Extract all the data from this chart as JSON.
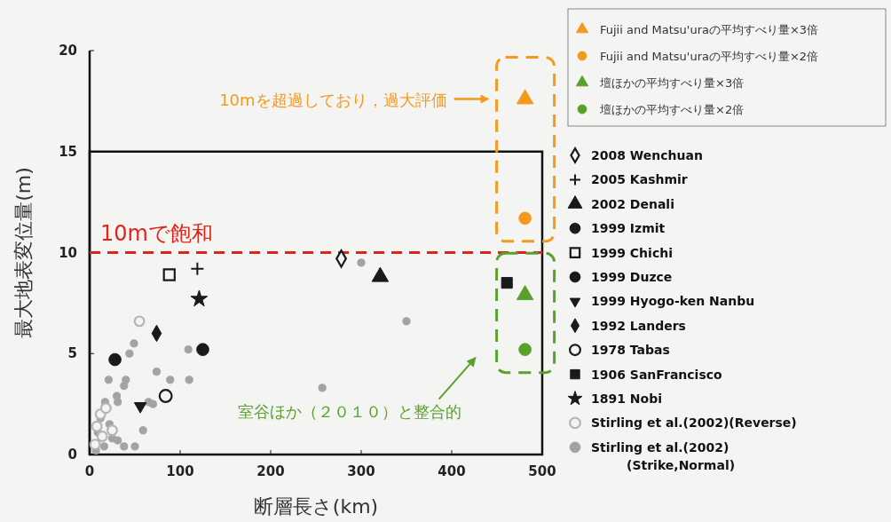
{
  "chart_data": {
    "type": "scatter",
    "xlabel": "断層長さ(km)",
    "ylabel": "最大地表変位量(m)",
    "xlim": [
      0,
      500
    ],
    "xticks": [
      0,
      100,
      200,
      300,
      400,
      500
    ],
    "ylim": [
      0,
      20
    ],
    "yticks": [
      0,
      5,
      10,
      15,
      20
    ],
    "grid": false,
    "legend": "right",
    "ref_lines": [
      {
        "axis": "y",
        "value": 10,
        "label": "10mで飽和",
        "color": "#e0241b",
        "line_style": "dashed"
      }
    ],
    "annotations": [
      "10mを超過しており，過大評価",
      "室谷ほか（２０１０）と整合的"
    ],
    "series": [
      {
        "name": "Fujii and Matsu'uraの平均すべり量×3倍",
        "color": "#f39a1e",
        "marker": "triangle",
        "x": [
          481
        ],
        "values": [
          17.6
        ]
      },
      {
        "name": "Fujii and Matsu'uraの平均すべり量×2倍",
        "color": "#f39a1e",
        "marker": "circle",
        "x": [
          481
        ],
        "values": [
          11.7
        ]
      },
      {
        "name": "壇ほかの平均すべり量×3倍",
        "color": "#5aa02c",
        "marker": "triangle",
        "x": [
          481
        ],
        "values": [
          7.9
        ]
      },
      {
        "name": "壇ほかの平均すべり量×2倍",
        "color": "#5aa02c",
        "marker": "circle",
        "x": [
          481
        ],
        "values": [
          5.2
        ]
      },
      {
        "name": "2008 Wenchuan",
        "color": "#1a1a1a",
        "marker": "diamond",
        "colors": [
          "#f4f4f2"
        ],
        "x": [
          278
        ],
        "values": [
          9.7
        ]
      },
      {
        "name": "2005 Kashmir",
        "color": "#1a1a1a",
        "marker": "cross",
        "x": [
          119
        ],
        "values": [
          9.2
        ]
      },
      {
        "name": "2002 Denali",
        "color": "#1a1a1a",
        "marker": "triangle",
        "x": [
          321
        ],
        "values": [
          8.8
        ]
      },
      {
        "name": "1999 Izmit",
        "color": "#1a1a1a",
        "marker": "circle",
        "x": [
          125
        ],
        "values": [
          5.2
        ]
      },
      {
        "name": "1999 Chichi",
        "color": "#1a1a1a",
        "marker": "square",
        "colors": [
          "#f4f4f2"
        ],
        "x": [
          88
        ],
        "values": [
          8.9
        ]
      },
      {
        "name": "1999 Duzce",
        "color": "#1a1a1a",
        "marker": "circle",
        "x": [
          28
        ],
        "values": [
          4.7
        ]
      },
      {
        "name": "1999 Hyogo-ken Nanbu",
        "color": "#1a1a1a",
        "marker": "triangle-down",
        "x": [
          56
        ],
        "values": [
          2.4
        ]
      },
      {
        "name": "1992 Landers",
        "color": "#1a1a1a",
        "marker": "diamond",
        "x": [
          74
        ],
        "values": [
          6.0
        ]
      },
      {
        "name": "1978 Tabas",
        "color": "#1a1a1a",
        "marker": "circle",
        "colors": [
          "#f4f4f2"
        ],
        "x": [
          84
        ],
        "values": [
          2.9
        ]
      },
      {
        "name": "1906 SanFrancisco",
        "color": "#1a1a1a",
        "marker": "square",
        "x": [
          461
        ],
        "values": [
          8.5
        ]
      },
      {
        "name": "1891 Nobi",
        "color": "#1a1a1a",
        "marker": "star",
        "x": [
          121
        ],
        "values": [
          7.7
        ]
      },
      {
        "name": "Stirling et al.(2002)(Reverse)",
        "color": "#b5b5b5",
        "marker": "circle",
        "colors": [
          "#f4f4f2",
          "#f4f4f2",
          "#f4f4f2",
          "#f4f4f2",
          "#f4f4f2",
          "#f4f4f2",
          "#f4f4f2"
        ],
        "x": [
          55,
          12,
          18,
          8,
          14,
          25,
          6
        ],
        "values": [
          6.6,
          2.0,
          2.3,
          1.4,
          0.9,
          1.2,
          0.5
        ]
      },
      {
        "name": "Stirling et al.(2002)\n(Strike,Normal)",
        "color": "#a3a3a3",
        "marker": "circle",
        "x": [
          49,
          44,
          109,
          74,
          89,
          110,
          21,
          40,
          38,
          30,
          31,
          65,
          70,
          59,
          17,
          12,
          22,
          9,
          25,
          38,
          50,
          16,
          31,
          7,
          257,
          300,
          350
        ],
        "values": [
          5.5,
          5.0,
          5.2,
          4.1,
          3.7,
          3.7,
          3.7,
          3.7,
          3.4,
          2.9,
          2.6,
          2.6,
          2.5,
          1.2,
          2.6,
          1.8,
          1.5,
          1.1,
          0.8,
          0.4,
          0.4,
          0.4,
          0.7,
          0.2,
          3.3,
          9.5,
          6.6
        ]
      }
    ]
  }
}
